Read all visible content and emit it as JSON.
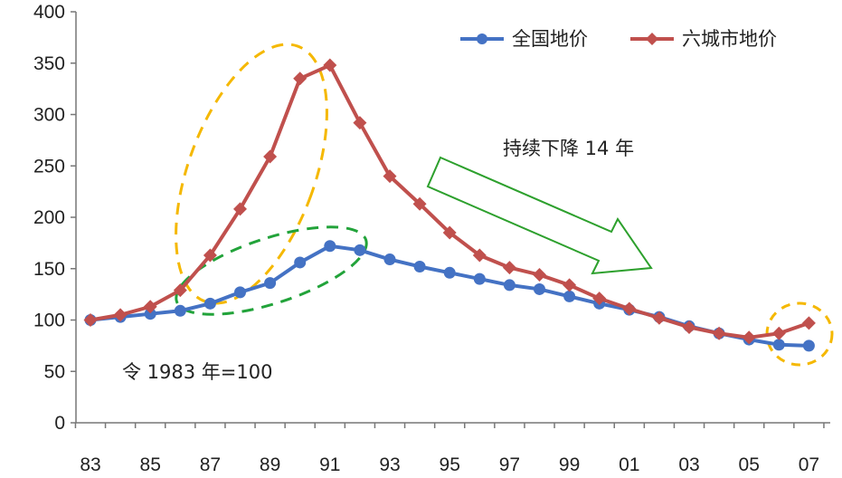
{
  "chart_data": {
    "type": "line",
    "x": [
      "83",
      "84",
      "85",
      "86",
      "87",
      "88",
      "89",
      "90",
      "91",
      "92",
      "93",
      "94",
      "95",
      "96",
      "97",
      "98",
      "99",
      "00",
      "01",
      "02",
      "03",
      "04",
      "05",
      "06",
      "07"
    ],
    "xticks": [
      "83",
      "85",
      "87",
      "89",
      "91",
      "93",
      "95",
      "97",
      "99",
      "01",
      "03",
      "05",
      "07"
    ],
    "yticks": [
      "0",
      "50",
      "100",
      "150",
      "200",
      "250",
      "300",
      "350",
      "400"
    ],
    "ylim": [
      0,
      400
    ],
    "series": [
      {
        "name": "全国地价",
        "color": "#4472C4",
        "marker": "circle",
        "values": [
          100,
          103,
          106,
          109,
          116,
          127,
          136,
          156,
          172,
          168,
          159,
          152,
          146,
          140,
          134,
          130,
          123,
          116,
          110,
          103,
          94,
          87,
          81,
          76,
          75
        ]
      },
      {
        "name": "六城市地价",
        "color": "#C0504D",
        "marker": "diamond",
        "values": [
          100,
          105,
          113,
          129,
          163,
          208,
          259,
          335,
          348,
          292,
          240,
          213,
          185,
          163,
          151,
          144,
          134,
          121,
          111,
          102,
          93,
          87,
          83,
          87,
          97
        ]
      }
    ],
    "annotations": {
      "trend": "持续下降 14 年",
      "base": "令 1983 年=100"
    },
    "legend_position": "top-right",
    "grid": false,
    "highlight_color": "#F5B800",
    "highlight_color_2": "#22A33A",
    "arrow_color": "#2DA02D"
  }
}
